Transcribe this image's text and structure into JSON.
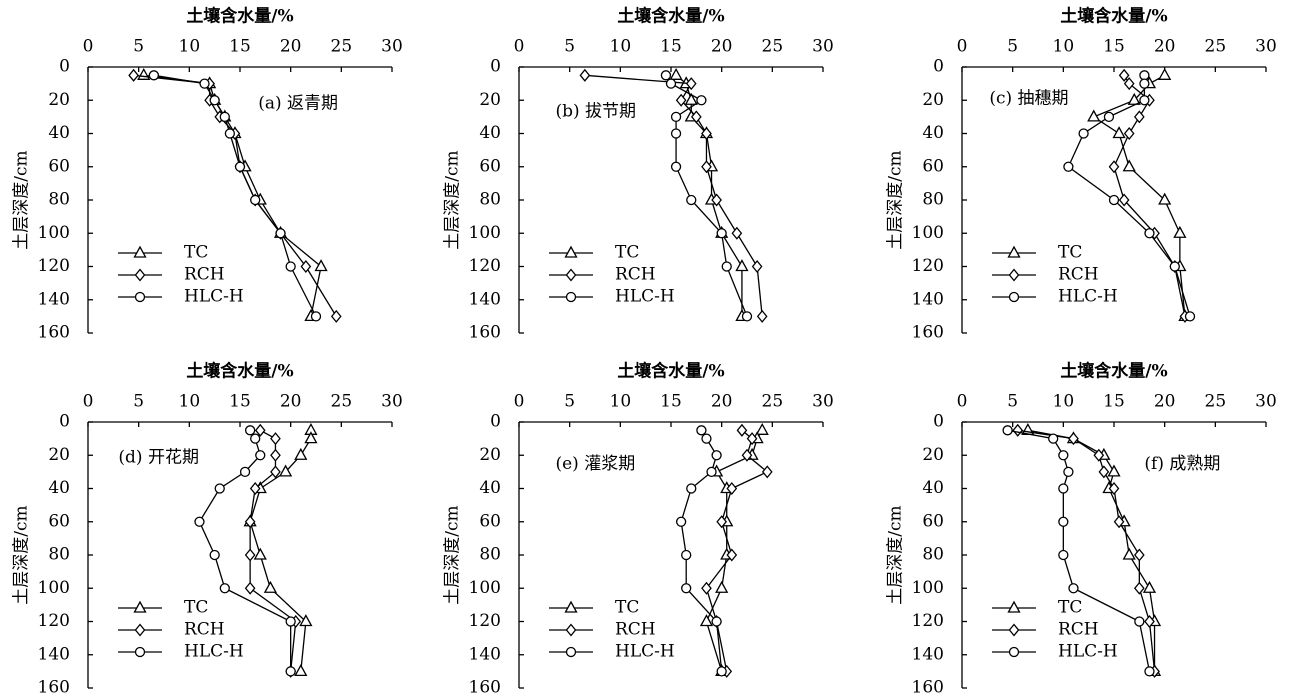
{
  "chart_data": [
    {
      "type": "line",
      "title": "(a) 返青期",
      "xlabel": "土壤含水量/%",
      "ylabel": "土层深度/cm",
      "y": [
        5,
        10,
        20,
        30,
        40,
        60,
        80,
        100,
        120,
        150
      ],
      "xlim": [
        0,
        30
      ],
      "xticks": [
        0,
        5,
        10,
        15,
        20,
        25,
        30
      ],
      "ylim": [
        0,
        160
      ],
      "y_inverted": true,
      "yticks": [
        0,
        20,
        40,
        60,
        80,
        100,
        120,
        140,
        160
      ],
      "legend": "lower left",
      "series": [
        {
          "name": "TC",
          "color": "#000000",
          "marker": "triangle",
          "values": [
            5.5,
            12,
            12.5,
            13.5,
            14.5,
            15.5,
            17,
            19,
            23,
            22
          ]
        },
        {
          "name": "RCH",
          "color": "#000000",
          "marker": "diamond",
          "values": [
            4.5,
            12,
            12,
            13,
            14.5,
            15,
            16.5,
            19,
            21.5,
            24.5
          ]
        },
        {
          "name": "HLC-H",
          "color": "#000000",
          "marker": "circle",
          "values": [
            6.5,
            11.5,
            12.5,
            13.5,
            14,
            15,
            16.5,
            19,
            20,
            22.5
          ]
        }
      ]
    },
    {
      "type": "line",
      "title": "(b) 拔节期",
      "xlabel": "土壤含水量/%",
      "ylabel": "土层深度/cm",
      "y": [
        5,
        10,
        20,
        30,
        40,
        60,
        80,
        100,
        120,
        150
      ],
      "xlim": [
        0,
        30
      ],
      "xticks": [
        0,
        5,
        10,
        15,
        20,
        25,
        30
      ],
      "ylim": [
        0,
        160
      ],
      "y_inverted": true,
      "yticks": [
        0,
        20,
        40,
        60,
        80,
        100,
        120,
        140,
        160
      ],
      "legend": "lower left",
      "series": [
        {
          "name": "TC",
          "color": "#000000",
          "marker": "triangle",
          "values": [
            15.5,
            16.5,
            17,
            17,
            18.5,
            19,
            19,
            20,
            22,
            22
          ]
        },
        {
          "name": "RCH",
          "color": "#000000",
          "marker": "diamond",
          "values": [
            6.5,
            17,
            16,
            17.5,
            18.5,
            18.5,
            19.5,
            21.5,
            23.5,
            24
          ]
        },
        {
          "name": "HLC-H",
          "color": "#000000",
          "marker": "circle",
          "values": [
            14.5,
            15,
            18,
            15.5,
            15.5,
            15.5,
            17,
            20,
            20.5,
            22.5
          ]
        }
      ]
    },
    {
      "type": "line",
      "title": "(c) 抽穗期",
      "xlabel": "土壤含水量/%",
      "ylabel": "土层深度/cm",
      "y": [
        5,
        10,
        20,
        30,
        40,
        60,
        80,
        100,
        120,
        150
      ],
      "xlim": [
        0,
        30
      ],
      "xticks": [
        0,
        5,
        10,
        15,
        20,
        25,
        30
      ],
      "ylim": [
        0,
        160
      ],
      "y_inverted": true,
      "yticks": [
        0,
        20,
        40,
        60,
        80,
        100,
        120,
        140,
        160
      ],
      "legend": "lower left",
      "series": [
        {
          "name": "TC",
          "color": "#000000",
          "marker": "triangle",
          "values": [
            20,
            18.5,
            17,
            13,
            15.5,
            16.5,
            20,
            21.5,
            21.5,
            22
          ]
        },
        {
          "name": "RCH",
          "color": "#000000",
          "marker": "diamond",
          "values": [
            16,
            16.5,
            18.5,
            17.5,
            16.5,
            15,
            16,
            19,
            21,
            22
          ]
        },
        {
          "name": "HLC-H",
          "color": "#000000",
          "marker": "circle",
          "values": [
            18,
            18,
            18,
            14.5,
            12,
            10.5,
            15,
            18.5,
            21,
            22.5
          ]
        }
      ]
    },
    {
      "type": "line",
      "title": "(d) 开花期",
      "xlabel": "土壤含水量/%",
      "ylabel": "土层深度/cm",
      "y": [
        5,
        10,
        20,
        30,
        40,
        60,
        80,
        100,
        120,
        150
      ],
      "xlim": [
        0,
        30
      ],
      "xticks": [
        0,
        5,
        10,
        15,
        20,
        25,
        30
      ],
      "ylim": [
        0,
        160
      ],
      "y_inverted": true,
      "yticks": [
        0,
        20,
        40,
        60,
        80,
        100,
        120,
        140,
        160
      ],
      "legend": "lower left",
      "series": [
        {
          "name": "TC",
          "color": "#000000",
          "marker": "triangle",
          "values": [
            22,
            22,
            21,
            19.5,
            17,
            16,
            17,
            18,
            21.5,
            21
          ]
        },
        {
          "name": "RCH",
          "color": "#000000",
          "marker": "diamond",
          "values": [
            17,
            18.5,
            18.5,
            18.5,
            16.5,
            16,
            16,
            16,
            20.5,
            20
          ]
        },
        {
          "name": "HLC-H",
          "color": "#000000",
          "marker": "circle",
          "values": [
            16,
            16.5,
            17,
            15.5,
            13,
            11,
            12.5,
            13.5,
            20,
            20
          ]
        }
      ]
    },
    {
      "type": "line",
      "title": "(e) 灌浆期",
      "xlabel": "土壤含水量/%",
      "ylabel": "土层深度/cm",
      "y": [
        5,
        10,
        20,
        30,
        40,
        60,
        80,
        100,
        120,
        150
      ],
      "xlim": [
        0,
        30
      ],
      "xticks": [
        0,
        5,
        10,
        15,
        20,
        25,
        30
      ],
      "ylim": [
        0,
        160
      ],
      "y_inverted": true,
      "yticks": [
        0,
        20,
        40,
        60,
        80,
        100,
        120,
        140,
        160
      ],
      "legend": "lower left",
      "series": [
        {
          "name": "TC",
          "color": "#000000",
          "marker": "triangle",
          "values": [
            24,
            23.5,
            23,
            19.5,
            20.5,
            20.5,
            20.5,
            20,
            18.5,
            20
          ]
        },
        {
          "name": "RCH",
          "color": "#000000",
          "marker": "diamond",
          "values": [
            22,
            23,
            22.5,
            24.5,
            21,
            20,
            21,
            18.5,
            19.5,
            20.5
          ]
        },
        {
          "name": "HLC-H",
          "color": "#000000",
          "marker": "circle",
          "values": [
            18,
            18.5,
            19.5,
            19,
            17,
            16,
            16.5,
            16.5,
            19.5,
            20
          ]
        }
      ]
    },
    {
      "type": "line",
      "title": "(f) 成熟期",
      "xlabel": "土壤含水量/%",
      "ylabel": "土层深度/cm",
      "y": [
        5,
        10,
        20,
        30,
        40,
        60,
        80,
        100,
        120,
        150
      ],
      "xlim": [
        0,
        30
      ],
      "xticks": [
        0,
        5,
        10,
        15,
        20,
        25,
        30
      ],
      "ylim": [
        0,
        160
      ],
      "y_inverted": true,
      "yticks": [
        0,
        20,
        40,
        60,
        80,
        100,
        120,
        140,
        160
      ],
      "legend": "lower left",
      "series": [
        {
          "name": "TC",
          "color": "#000000",
          "marker": "triangle",
          "values": [
            6.5,
            11,
            14,
            15,
            14.5,
            16,
            16.5,
            18.5,
            19,
            19
          ]
        },
        {
          "name": "RCH",
          "color": "#000000",
          "marker": "diamond",
          "values": [
            5.5,
            11,
            13.5,
            14,
            15,
            15.5,
            17.5,
            17.5,
            18.5,
            19
          ]
        },
        {
          "name": "HLC-H",
          "color": "#000000",
          "marker": "circle",
          "values": [
            4.5,
            9,
            10,
            10.5,
            10,
            10,
            10,
            11,
            17.5,
            18.5
          ]
        }
      ]
    }
  ]
}
